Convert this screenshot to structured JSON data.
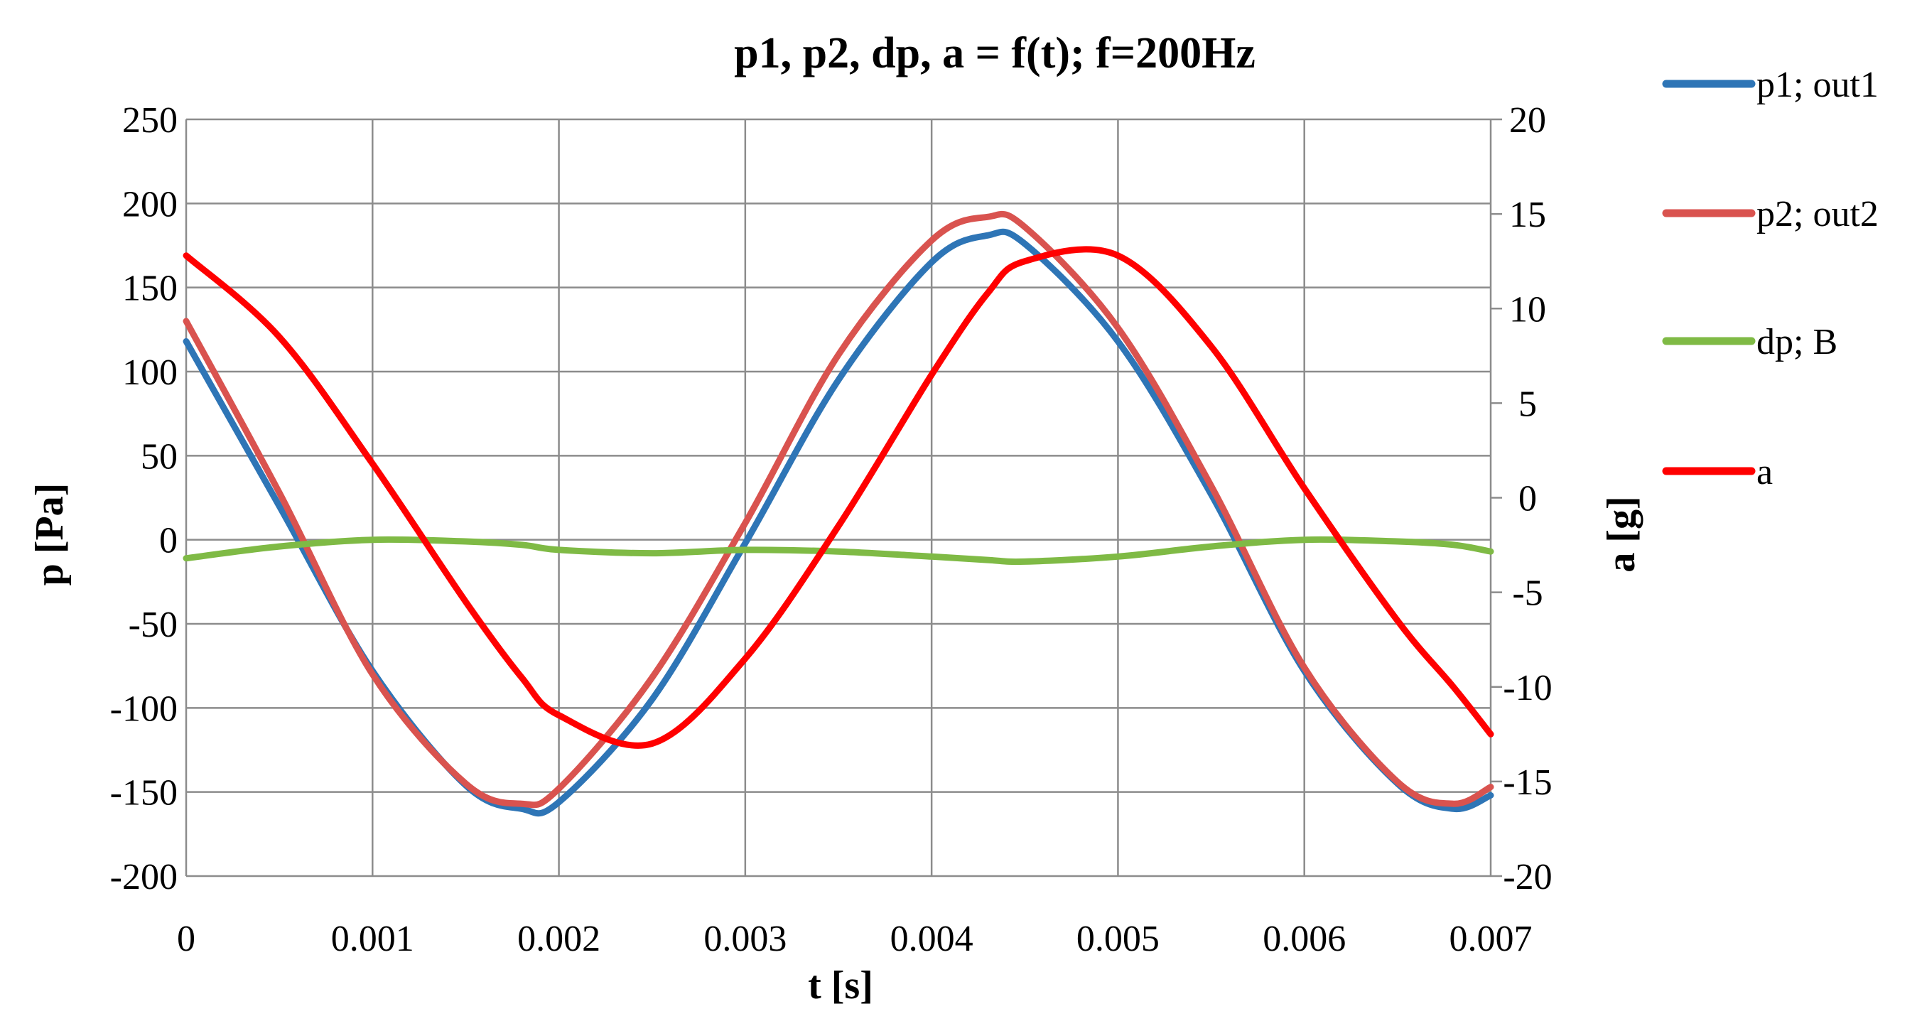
{
  "chart_data": {
    "type": "line",
    "title": "p1, p2, dp, a = f(t); f=200Hz",
    "xlabel": "t [s]",
    "ylabel": "p [Pa]",
    "y2label": "a [g]",
    "xlim": [
      0,
      0.007
    ],
    "ylim": [
      -200,
      250
    ],
    "y2lim": [
      -20,
      20
    ],
    "grid": true,
    "legend_position": "right",
    "x_ticks": [
      "0",
      "0.001",
      "0.002",
      "0.003",
      "0.004",
      "0.005",
      "0.006",
      "0.007"
    ],
    "y_ticks": [
      "250",
      "200",
      "150",
      "100",
      "50",
      "0",
      "-50",
      "-100",
      "-150",
      "-200"
    ],
    "y2_ticks": [
      "20",
      "15",
      "10",
      "5",
      "0",
      "-5",
      "-10",
      "-15",
      "-20"
    ],
    "x": [
      0,
      0.0005,
      0.001,
      0.0015,
      0.0018,
      0.002,
      0.0025,
      0.003,
      0.0035,
      0.004,
      0.0043,
      0.0045,
      0.005,
      0.0055,
      0.006,
      0.0065,
      0.0068,
      0.007
    ],
    "series": [
      {
        "name": "p1; out1",
        "axis": "left",
        "color": "#2E75B6",
        "values": [
          118,
          20,
          -78,
          -146,
          -160,
          -156,
          -95,
          -2,
          95,
          165,
          181,
          176,
          118,
          27,
          -78,
          -145,
          -160,
          -152
        ]
      },
      {
        "name": "p2; out2",
        "axis": "left",
        "color": "#D9534F",
        "values": [
          130,
          28,
          -80,
          -145,
          -157,
          -148,
          -82,
          10,
          110,
          178,
          192,
          186,
          126,
          32,
          -76,
          -144,
          -157,
          -147
        ]
      },
      {
        "name": "dp; B",
        "axis": "left",
        "color": "#7FBA45",
        "values": [
          -11,
          -4,
          0,
          -1,
          -3,
          -6,
          -8,
          -6,
          -7,
          -10,
          -12,
          -13,
          -10,
          -4,
          0,
          -1,
          -3,
          -7
        ]
      },
      {
        "name": "a",
        "axis": "right",
        "color": "#FF0000",
        "values": [
          12.8,
          8.5,
          1.8,
          -5.5,
          -9.5,
          -11.5,
          -13.0,
          -8.5,
          -1.5,
          6.5,
          10.8,
          12.5,
          12.8,
          8.0,
          0.5,
          -6.5,
          -10.0,
          -12.5
        ]
      }
    ]
  }
}
